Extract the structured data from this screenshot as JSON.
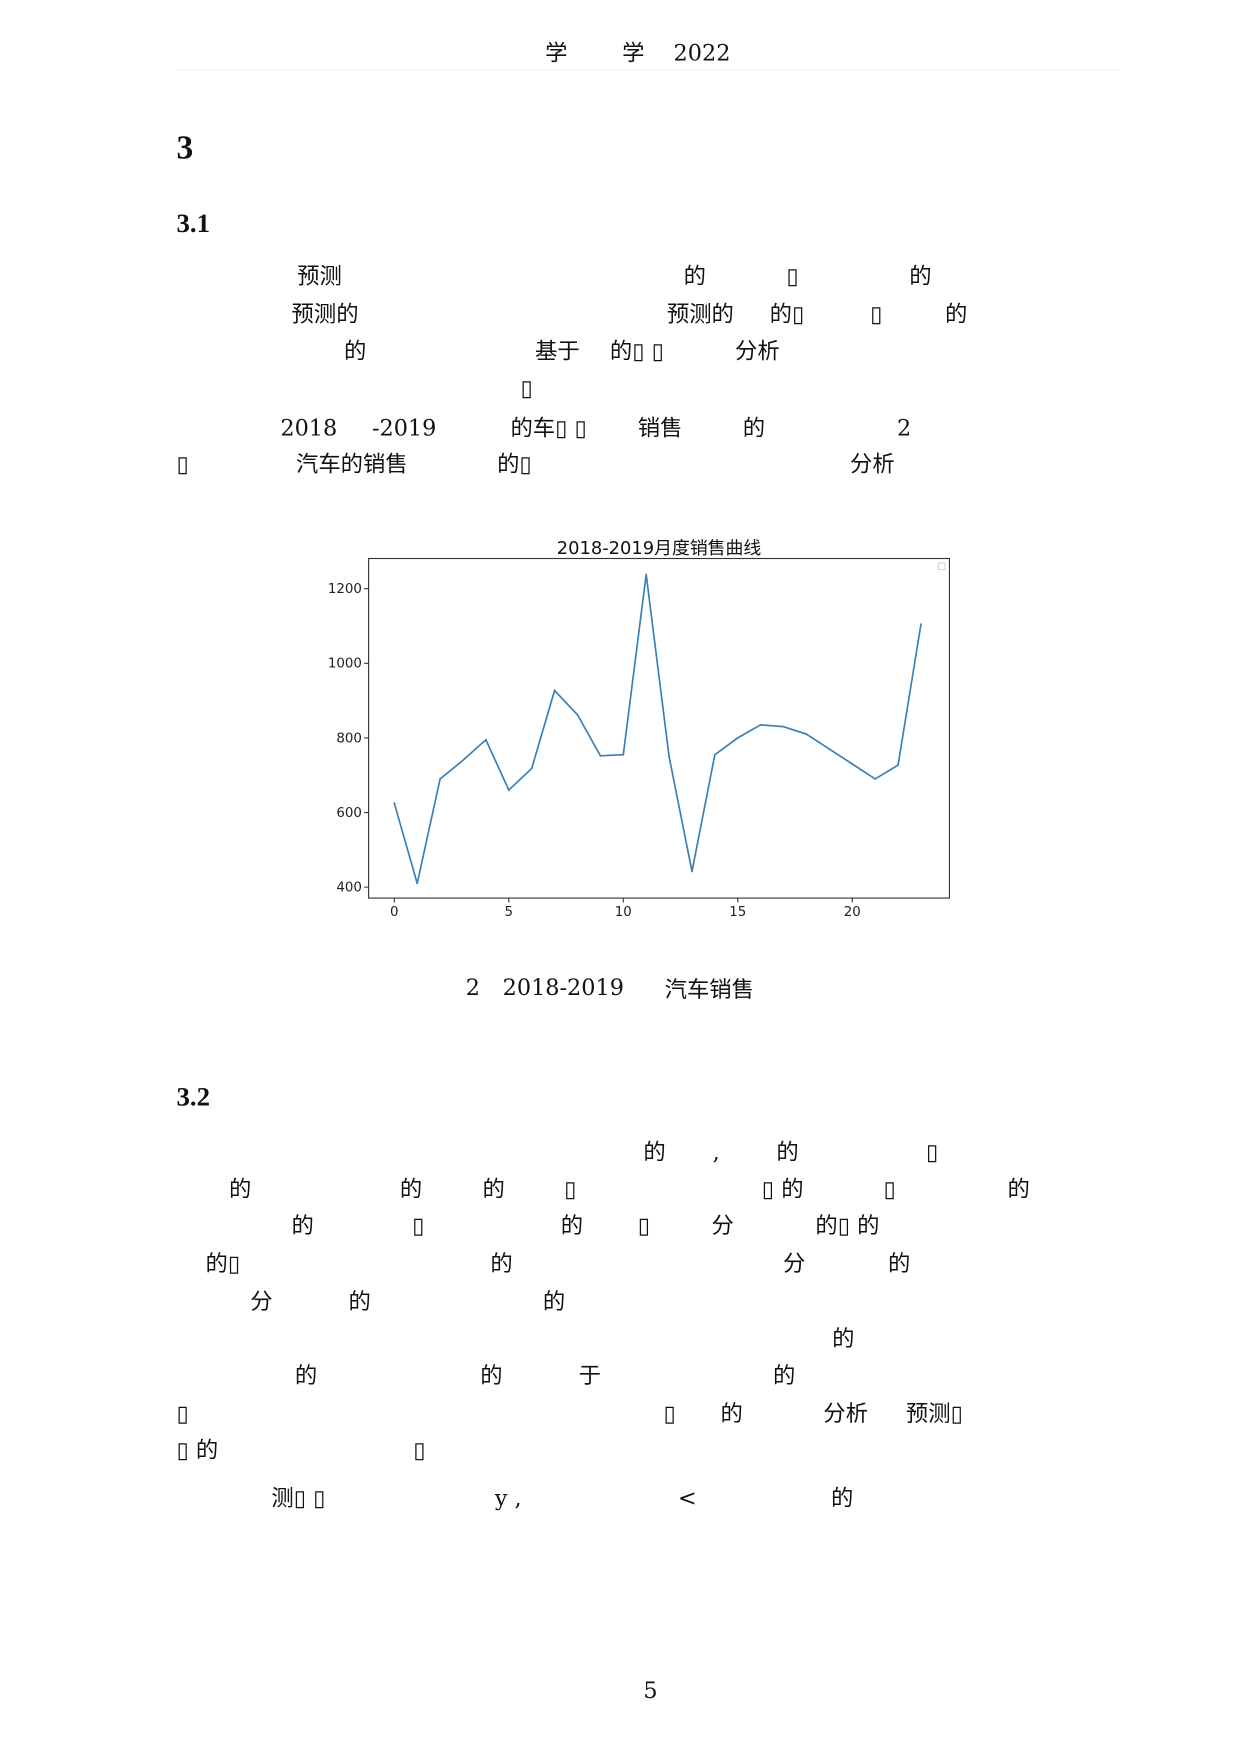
{
  "header": {
    "parts": [
      "学",
      "学",
      "2022"
    ]
  },
  "section_title": "3",
  "subsection_1": "3.1",
  "para1": [
    [
      "预测",
      "的",
      "▯",
      "的"
    ],
    [
      "预测的",
      "预测的",
      "的▯",
      "▯",
      "的"
    ],
    [
      "的",
      "基于",
      "的▯ ▯",
      "分析"
    ],
    [
      "▯"
    ],
    [
      "2018",
      "-2019",
      "的车▯ ▯",
      "销售",
      "的",
      "2"
    ],
    [
      "▯",
      "汽车的销售",
      "的▯",
      "分析"
    ]
  ],
  "figure_caption": {
    "number": "2",
    "years": "2018-2019",
    "text": "汽车销售"
  },
  "subsection_2": "3.2",
  "para2": [
    [
      "的",
      ",",
      "的",
      "▯"
    ],
    [
      "的",
      "的",
      "的",
      "▯",
      "▯ 的",
      "▯",
      "的"
    ],
    [
      "的",
      "▯",
      "的",
      "▯",
      "分",
      "的▯ 的"
    ],
    [
      "的▯",
      "的",
      "分",
      "的"
    ],
    [
      "分",
      "的",
      "的"
    ],
    [
      "的"
    ],
    [
      "的",
      "的",
      "于",
      "的"
    ],
    [
      "▯",
      "▯",
      "的",
      "分析",
      "预测▯"
    ],
    [
      "▯ 的",
      "▯"
    ],
    [
      "测▯ ▯",
      "y ,",
      "<",
      "的"
    ]
  ],
  "page_number": "5",
  "chart_data": {
    "type": "line",
    "title": "2018-2019月度销售曲线",
    "xlabel": "",
    "ylabel": "",
    "x": [
      0,
      1,
      2,
      3,
      4,
      5,
      6,
      7,
      8,
      9,
      10,
      11,
      12,
      13,
      14,
      15,
      16,
      17,
      18,
      19,
      20,
      21,
      22,
      23
    ],
    "values": [
      625,
      410,
      690,
      740,
      795,
      660,
      718,
      927,
      862,
      752,
      755,
      1238,
      750,
      442,
      755,
      800,
      835,
      830,
      810,
      770,
      730,
      690,
      727,
      1105
    ],
    "xticks": [
      0,
      5,
      10,
      15,
      20
    ],
    "yticks": [
      400,
      600,
      800,
      1000,
      1200
    ],
    "xlim": [
      -1.1,
      24.1
    ],
    "ylim": [
      380,
      1280
    ],
    "grid": false,
    "legend": "top-right (empty)",
    "line_color": "#3a7fb5"
  }
}
